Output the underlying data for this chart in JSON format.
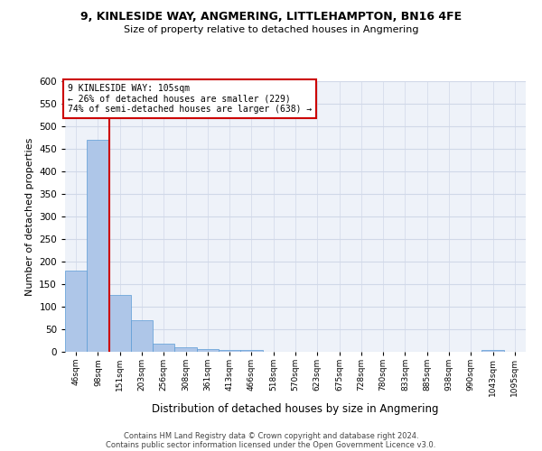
{
  "title": "9, KINLESIDE WAY, ANGMERING, LITTLEHAMPTON, BN16 4FE",
  "subtitle": "Size of property relative to detached houses in Angmering",
  "xlabel": "Distribution of detached houses by size in Angmering",
  "ylabel": "Number of detached properties",
  "categories": [
    "46sqm",
    "98sqm",
    "151sqm",
    "203sqm",
    "256sqm",
    "308sqm",
    "361sqm",
    "413sqm",
    "466sqm",
    "518sqm",
    "570sqm",
    "623sqm",
    "675sqm",
    "728sqm",
    "780sqm",
    "833sqm",
    "885sqm",
    "938sqm",
    "990sqm",
    "1043sqm",
    "1095sqm"
  ],
  "values": [
    180,
    470,
    127,
    70,
    18,
    10,
    7,
    5,
    5,
    0,
    0,
    0,
    0,
    0,
    0,
    0,
    0,
    0,
    0,
    5,
    0
  ],
  "bar_color": "#aec6e8",
  "bar_edge_color": "#5b9bd5",
  "grid_color": "#d0d8e8",
  "background_color": "#eef2f9",
  "vline_color": "#cc0000",
  "annotation_text": "9 KINLESIDE WAY: 105sqm\n← 26% of detached houses are smaller (229)\n74% of semi-detached houses are larger (638) →",
  "annotation_box_color": "#cc0000",
  "ylim": [
    0,
    600
  ],
  "yticks": [
    0,
    50,
    100,
    150,
    200,
    250,
    300,
    350,
    400,
    450,
    500,
    550,
    600
  ],
  "footer_line1": "Contains HM Land Registry data © Crown copyright and database right 2024.",
  "footer_line2": "Contains public sector information licensed under the Open Government Licence v3.0."
}
